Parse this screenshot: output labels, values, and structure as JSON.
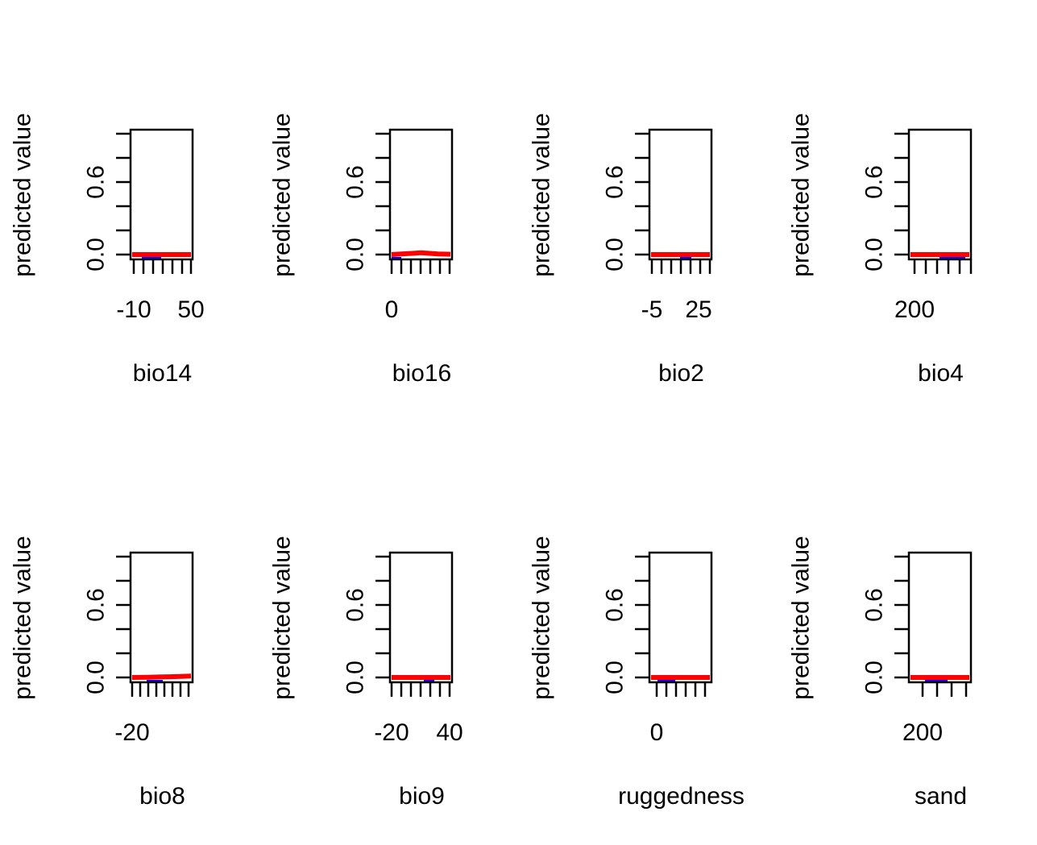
{
  "chart_data": [
    {
      "type": "line",
      "xlabel": "bio14",
      "ylabel": "predicted value",
      "x_tick_labels": [
        "-10",
        "50"
      ],
      "y_tick_labels": [
        "0.0",
        "0.6"
      ],
      "ylim": [
        0,
        1
      ],
      "series": [
        {
          "x": [
            -15,
            0,
            15,
            30,
            45,
            55
          ],
          "y": [
            0.0,
            0.0,
            0.0,
            0.0,
            0.0,
            0.0
          ]
        }
      ]
    },
    {
      "type": "line",
      "xlabel": "bio16",
      "ylabel": "predicted value",
      "x_tick_labels": [
        "0"
      ],
      "y_tick_labels": [
        "0.0",
        "0.6"
      ],
      "ylim": [
        0,
        1
      ],
      "series": [
        {
          "x": [
            -2,
            0.5,
            1.5,
            2.5,
            3.5,
            5
          ],
          "y": [
            0.0,
            0.01,
            0.015,
            0.01,
            0.005,
            0.003
          ]
        }
      ]
    },
    {
      "type": "line",
      "xlabel": "bio2",
      "ylabel": "predicted value",
      "x_tick_labels": [
        "-5",
        "25"
      ],
      "y_tick_labels": [
        "0.0",
        "0.6"
      ],
      "ylim": [
        0,
        1
      ],
      "series": [
        {
          "x": [
            -8,
            0,
            10,
            20,
            28
          ],
          "y": [
            0.0,
            0.0,
            0.0,
            0.0,
            0.0
          ]
        }
      ]
    },
    {
      "type": "line",
      "xlabel": "bio4",
      "ylabel": "predicted value",
      "x_tick_labels": [
        "200"
      ],
      "y_tick_labels": [
        "0.0",
        "0.6"
      ],
      "ylim": [
        0,
        1
      ],
      "series": [
        {
          "x": [
            150,
            300,
            500,
            700,
            900
          ],
          "y": [
            0.0,
            0.0,
            0.0,
            0.0,
            0.0
          ]
        }
      ]
    },
    {
      "type": "line",
      "xlabel": "bio8",
      "ylabel": "predicted value",
      "x_tick_labels": [
        "-20"
      ],
      "y_tick_labels": [
        "0.0",
        "0.6"
      ],
      "ylim": [
        0,
        1
      ],
      "series": [
        {
          "x": [
            -25,
            -10,
            0,
            10,
            20,
            30
          ],
          "y": [
            0.0,
            0.002,
            0.004,
            0.006,
            0.008,
            0.012
          ]
        }
      ]
    },
    {
      "type": "line",
      "xlabel": "bio9",
      "ylabel": "predicted value",
      "x_tick_labels": [
        "-20",
        "40"
      ],
      "y_tick_labels": [
        "0.0",
        "0.6"
      ],
      "ylim": [
        0,
        1
      ],
      "series": [
        {
          "x": [
            -25,
            -10,
            10,
            30,
            43
          ],
          "y": [
            0.0,
            0.0,
            0.0,
            0.0,
            0.0
          ]
        }
      ]
    },
    {
      "type": "line",
      "xlabel": "ruggedness",
      "ylabel": "predicted value",
      "x_tick_labels": [
        "0"
      ],
      "y_tick_labels": [
        "0.0",
        "0.6"
      ],
      "ylim": [
        0,
        1
      ],
      "series": [
        {
          "x": [
            -1,
            1,
            2,
            3,
            4,
            6
          ],
          "y": [
            0.0,
            0.0,
            0.0,
            0.0,
            0.0,
            0.0
          ]
        }
      ]
    },
    {
      "type": "line",
      "xlabel": "sand",
      "ylabel": "predicted value",
      "x_tick_labels": [
        "200"
      ],
      "y_tick_labels": [
        "0.0",
        "0.6"
      ],
      "ylim": [
        0,
        1
      ],
      "series": [
        {
          "x": [
            150,
            300,
            450,
            600,
            750
          ],
          "y": [
            0.0,
            0.0,
            0.0,
            0.0,
            0.0
          ]
        }
      ]
    }
  ]
}
